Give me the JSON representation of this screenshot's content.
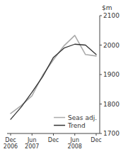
{
  "chart_data": {
    "type": "line",
    "y_label": "$m",
    "categories": [
      "Dec\n2006",
      null,
      "Jun\n2007",
      null,
      "Dec",
      null,
      "Jun\n2008",
      null,
      "Dec"
    ],
    "series": [
      {
        "name": "Seas adj.",
        "color": "#aaaaaa",
        "values": [
          1768,
          1795,
          1828,
          1898,
          1950,
          1998,
          2033,
          1968,
          1963
        ]
      },
      {
        "name": "Trend",
        "color": "#333333",
        "values": [
          1748,
          1790,
          1840,
          1893,
          1958,
          1990,
          2003,
          2000,
          1968
        ]
      }
    ],
    "ylim": [
      1700,
      2100
    ],
    "yticks": [
      1700,
      1800,
      1900,
      2000,
      2100
    ],
    "grid": false,
    "legend": "lower right"
  }
}
